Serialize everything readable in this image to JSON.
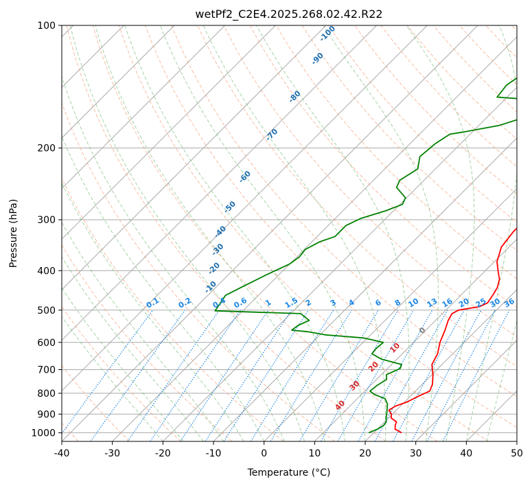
{
  "chart_data": {
    "type": "line",
    "title": "wetPf2_C2E4.2025.268.02.42.R22",
    "xlabel": "Temperature (°C)",
    "ylabel": "Pressure (hPa)",
    "xlim": [
      -40,
      50
    ],
    "ylim": [
      1050,
      100
    ],
    "y_scale": "log",
    "x_ticks": [
      -40,
      -30,
      -20,
      -10,
      0,
      10,
      20,
      30,
      40,
      50
    ],
    "y_ticks": [
      100,
      200,
      300,
      400,
      500,
      600,
      700,
      800,
      900,
      1000
    ],
    "grid": true,
    "colors": {
      "temperature": "#ff0000",
      "dewpoint": "#008000",
      "isotherm": "#a9a9a9",
      "dry_adiabat": "#f4a582",
      "moist_adiabat": "#7fbf7f",
      "mixing_ratio": "#1e88e5",
      "moist_label": "#1f6fb0",
      "dry_label": "#d62728",
      "zero_label": "#808080"
    },
    "series": [
      {
        "key": "temperature",
        "points": [
          [
            25.5,
            1000
          ],
          [
            23.5,
            980
          ],
          [
            22.8,
            960
          ],
          [
            22.3,
            940
          ],
          [
            20.5,
            920
          ],
          [
            19.8,
            900
          ],
          [
            18.5,
            880
          ],
          [
            19.0,
            860
          ],
          [
            20.5,
            840
          ],
          [
            21.3,
            820
          ],
          [
            21.8,
            810
          ],
          [
            22.8,
            790
          ],
          [
            22.0,
            760
          ],
          [
            20.2,
            720
          ],
          [
            18.0,
            680
          ],
          [
            17.0,
            640
          ],
          [
            15.2,
            600
          ],
          [
            13.8,
            560
          ],
          [
            12.5,
            530
          ],
          [
            11.9,
            510
          ],
          [
            12.5,
            500
          ],
          [
            16.0,
            490
          ],
          [
            16.8,
            480
          ],
          [
            16.2,
            455
          ],
          [
            15.7,
            440
          ],
          [
            14.5,
            420
          ],
          [
            12.5,
            400
          ],
          [
            10.5,
            380
          ],
          [
            8.5,
            350
          ],
          [
            7.8,
            320
          ],
          [
            8.0,
            300
          ],
          [
            8.5,
            290
          ],
          [
            8.2,
            280
          ],
          [
            9.0,
            270
          ],
          [
            10.0,
            255
          ],
          [
            10.5,
            240
          ],
          [
            8.0,
            215
          ],
          [
            6.8,
            195
          ],
          [
            6.2,
            178
          ],
          [
            5.5,
            168
          ],
          [
            5.9,
            160
          ],
          [
            7.5,
            152
          ],
          [
            9.5,
            145
          ],
          [
            10.5,
            138
          ],
          [
            6.5,
            118
          ],
          [
            2.0,
            110
          ],
          [
            1.5,
            100
          ]
        ]
      },
      {
        "key": "dewpoint",
        "points": [
          [
            19.0,
            1000
          ],
          [
            20.0,
            980
          ],
          [
            20.5,
            960
          ],
          [
            20.3,
            940
          ],
          [
            19.5,
            920
          ],
          [
            18.5,
            890
          ],
          [
            17.0,
            850
          ],
          [
            15.5,
            825
          ],
          [
            14.0,
            815
          ],
          [
            12.5,
            805
          ],
          [
            11.0,
            790
          ],
          [
            11.3,
            765
          ],
          [
            12.0,
            740
          ],
          [
            11.0,
            720
          ],
          [
            12.5,
            695
          ],
          [
            12.0,
            680
          ],
          [
            7.0,
            660
          ],
          [
            4.0,
            640
          ],
          [
            3.8,
            620
          ],
          [
            4.0,
            600
          ],
          [
            -0.8,
            585
          ],
          [
            -9.0,
            575
          ],
          [
            -13.0,
            565
          ],
          [
            -16.5,
            560
          ],
          [
            -16.2,
            545
          ],
          [
            -15.0,
            530
          ],
          [
            -18.0,
            510
          ],
          [
            -35.5,
            502
          ],
          [
            -36.0,
            480
          ],
          [
            -36.5,
            460
          ],
          [
            -35.0,
            440
          ],
          [
            -32.5,
            410
          ],
          [
            -30.0,
            385
          ],
          [
            -29.5,
            370
          ],
          [
            -29.8,
            355
          ],
          [
            -28.5,
            340
          ],
          [
            -26.5,
            330
          ],
          [
            -26.5,
            310
          ],
          [
            -25.0,
            298
          ],
          [
            -21.5,
            285
          ],
          [
            -19.5,
            275
          ],
          [
            -20.2,
            265
          ],
          [
            -24.0,
            250
          ],
          [
            -24.8,
            240
          ],
          [
            -23.5,
            225
          ],
          [
            -25.5,
            210
          ],
          [
            -25.0,
            195
          ],
          [
            -24.0,
            185
          ],
          [
            -22.0,
            183
          ],
          [
            -16.0,
            176
          ],
          [
            -12.0,
            167
          ],
          [
            -10.0,
            160
          ],
          [
            -11.0,
            155
          ],
          [
            -15.0,
            152
          ],
          [
            -22.0,
            150
          ],
          [
            -22.5,
            140
          ],
          [
            -21.0,
            128
          ],
          [
            -20.0,
            120
          ],
          [
            -12.0,
            116
          ],
          [
            -2.0,
            111
          ],
          [
            -0.5,
            106
          ],
          [
            -1.5,
            100
          ]
        ]
      }
    ],
    "mixing_ratio_labels": [
      "0.1",
      "0.2",
      "0.4",
      "0.6",
      "1",
      "1.5",
      "2",
      "3",
      "4",
      "6",
      "8",
      "10",
      "13",
      "16",
      "20",
      "25",
      "30",
      "36"
    ],
    "moist_adiabat_labels": [
      "-100",
      "-90",
      "-80",
      "-70",
      "-60",
      "-50",
      "-40",
      "-30",
      "-20",
      "-10"
    ],
    "dry_adiabat_labels": [
      "0",
      "10",
      "20",
      "30",
      "40"
    ]
  }
}
